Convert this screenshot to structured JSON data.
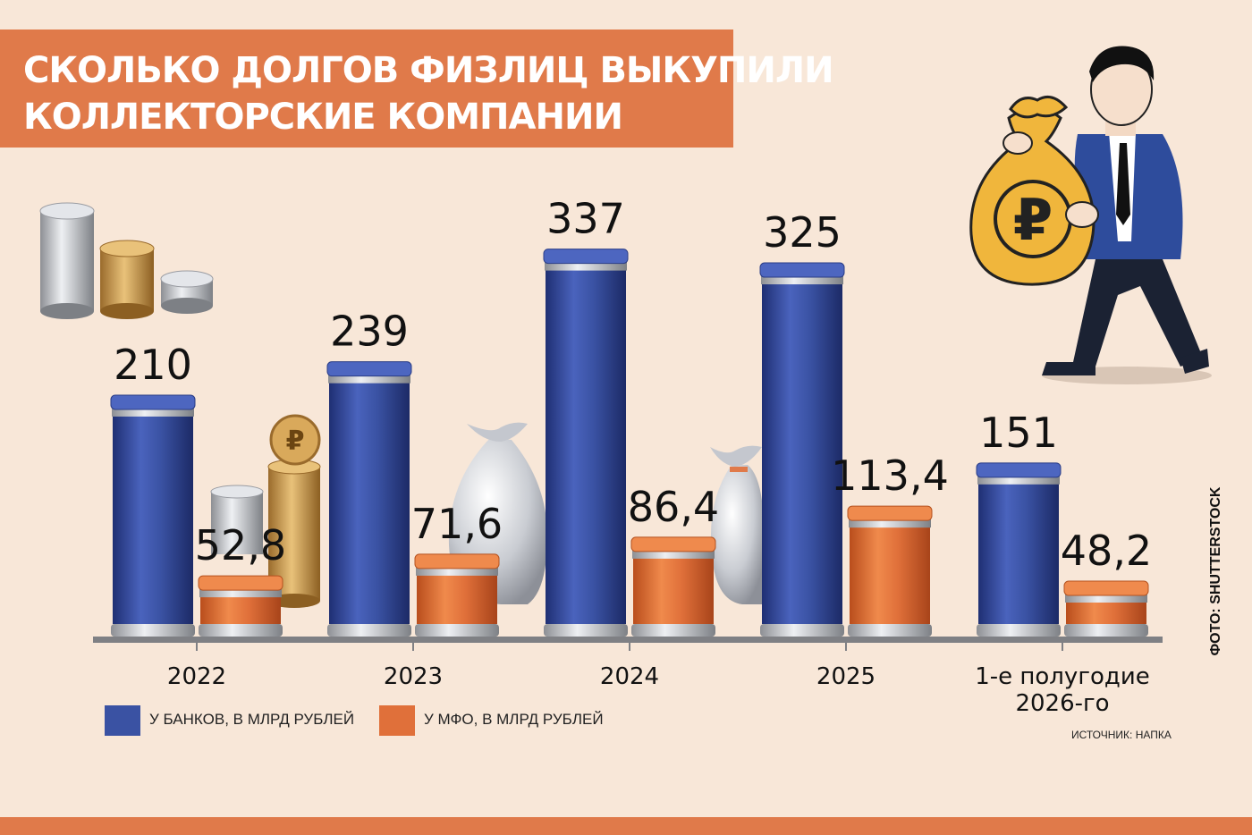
{
  "chart_data": {
    "type": "bar",
    "title": "СКОЛЬКО ДОЛГОВ ФИЗЛИЦ ВЫКУПИЛИ КОЛЛЕКТОРСКИЕ КОМПАНИИ",
    "title_lines": [
      "СКОЛЬКО ДОЛГОВ ФИЗЛИЦ ВЫКУПИЛИ",
      "КОЛЛЕКТОРСКИЕ КОМПАНИИ"
    ],
    "categories": [
      "2022",
      "2023",
      "2024",
      "2025",
      "1-е полугодие 2026-го"
    ],
    "category_lines": [
      [
        "2022"
      ],
      [
        "2023"
      ],
      [
        "2024"
      ],
      [
        "2025"
      ],
      [
        "1-е полугодие",
        "2026-го"
      ]
    ],
    "series": [
      {
        "name": "У БАНКОВ, В МЛРД РУБЛЕЙ",
        "values": [
          210,
          239,
          337,
          325,
          151
        ],
        "labels": [
          "210",
          "239",
          "337",
          "325",
          "151"
        ],
        "color": "#3a52a3"
      },
      {
        "name": "У МФО, В МЛРД РУБЛЕЙ",
        "values": [
          52.8,
          71.6,
          86.4,
          113.4,
          48.2
        ],
        "labels": [
          "52,8",
          "71,6",
          "86,4",
          "113,4",
          "48,2"
        ],
        "color": "#e0703a"
      }
    ],
    "ylim": [
      0,
      360
    ],
    "legend_position": "bottom-left",
    "grid": false
  },
  "source_note": "ИСТОЧНИК: НАПКА",
  "photo_credit": "ФОТО: SHUTTERSTOCK",
  "colors": {
    "background": "#f8e7d8",
    "banner": "#e07a4a",
    "bank": "#3a52a3",
    "mfo": "#e0703a"
  }
}
